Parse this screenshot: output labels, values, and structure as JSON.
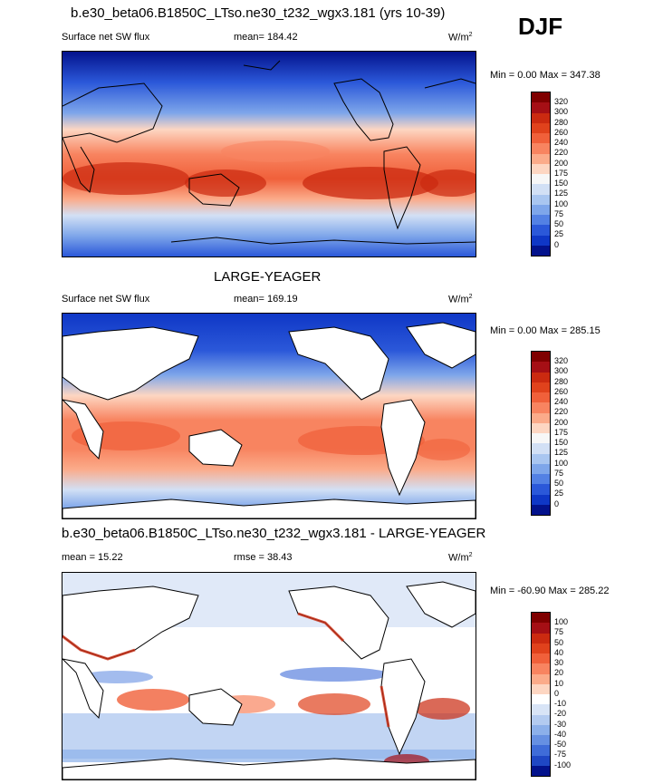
{
  "season": "DJF",
  "panels": [
    {
      "title": "b.e30_beta06.B1850C_LTso.ne30_t232_wgx3.181 (yrs 10-39)",
      "left_label": "Surface net SW flux",
      "center_label": "mean= 184.42",
      "units": "W/m",
      "units_sup": "2",
      "minmax": "Min =    0.00 Max = 347.38",
      "colorbar_labels": [
        "320",
        "300",
        "280",
        "260",
        "240",
        "220",
        "200",
        "175",
        "150",
        "125",
        "100",
        "75",
        "50",
        "25",
        "0"
      ]
    },
    {
      "title": "LARGE-YEAGER",
      "left_label": "Surface net SW flux",
      "center_label": "mean= 169.19",
      "units": "W/m",
      "units_sup": "2",
      "minmax": "Min =    0.00 Max = 285.15",
      "colorbar_labels": [
        "320",
        "300",
        "280",
        "260",
        "240",
        "220",
        "200",
        "175",
        "150",
        "125",
        "100",
        "75",
        "50",
        "25",
        "0"
      ]
    },
    {
      "title": "b.e30_beta06.B1850C_LTso.ne30_t232_wgx3.181 - LARGE-YEAGER",
      "left_label": "mean =   15.22",
      "center_label": "rmse =   38.43",
      "units": "W/m",
      "units_sup": "2",
      "minmax": "Min = -60.90 Max = 285.22",
      "colorbar_labels": [
        "100",
        "75",
        "50",
        "40",
        "30",
        "20",
        "10",
        "0",
        "-10",
        "-20",
        "-30",
        "-40",
        "-50",
        "-75",
        "-100"
      ]
    }
  ],
  "colors": {
    "absolute_scale": [
      "#7f0000",
      "#a50f15",
      "#cb2a10",
      "#e0421c",
      "#f0603a",
      "#f88460",
      "#fbab8a",
      "#fdd6c2",
      "#f7f7f7",
      "#d2e0f5",
      "#a9c6f0",
      "#7ea6ea",
      "#5381e4",
      "#2b58d9",
      "#0f37c6",
      "#03128c"
    ],
    "difference_scale": [
      "#7f0000",
      "#a50f15",
      "#cb2a10",
      "#e0421c",
      "#f0603a",
      "#f88460",
      "#fbab8a",
      "#fdd6c2",
      "#ffffff",
      "#d8e4f6",
      "#b3cbf0",
      "#8cb0ea",
      "#6690e2",
      "#3f6cd8",
      "#1f47c4",
      "#03128c"
    ]
  }
}
